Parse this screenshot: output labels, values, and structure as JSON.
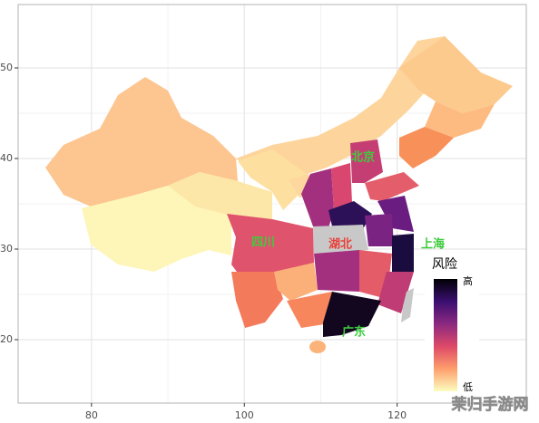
{
  "chart_data": {
    "type": "map",
    "xlim": [
      70.4,
      136.9
    ],
    "xticks": [
      80,
      100,
      120
    ],
    "ylim": [
      13,
      57
    ],
    "yticks": [
      20,
      30,
      40,
      50
    ],
    "grid": true,
    "annotations": [
      "北京",
      "四川",
      "湖北",
      "上海",
      "广东"
    ],
    "legend": {
      "title": "风险",
      "high": "高",
      "low": "低",
      "colors": [
        "#000004",
        "#3b0f70",
        "#8c2981",
        "#de4968",
        "#fe9f6d",
        "#fcfdbf"
      ]
    },
    "watermark": "茉归手游网"
  }
}
